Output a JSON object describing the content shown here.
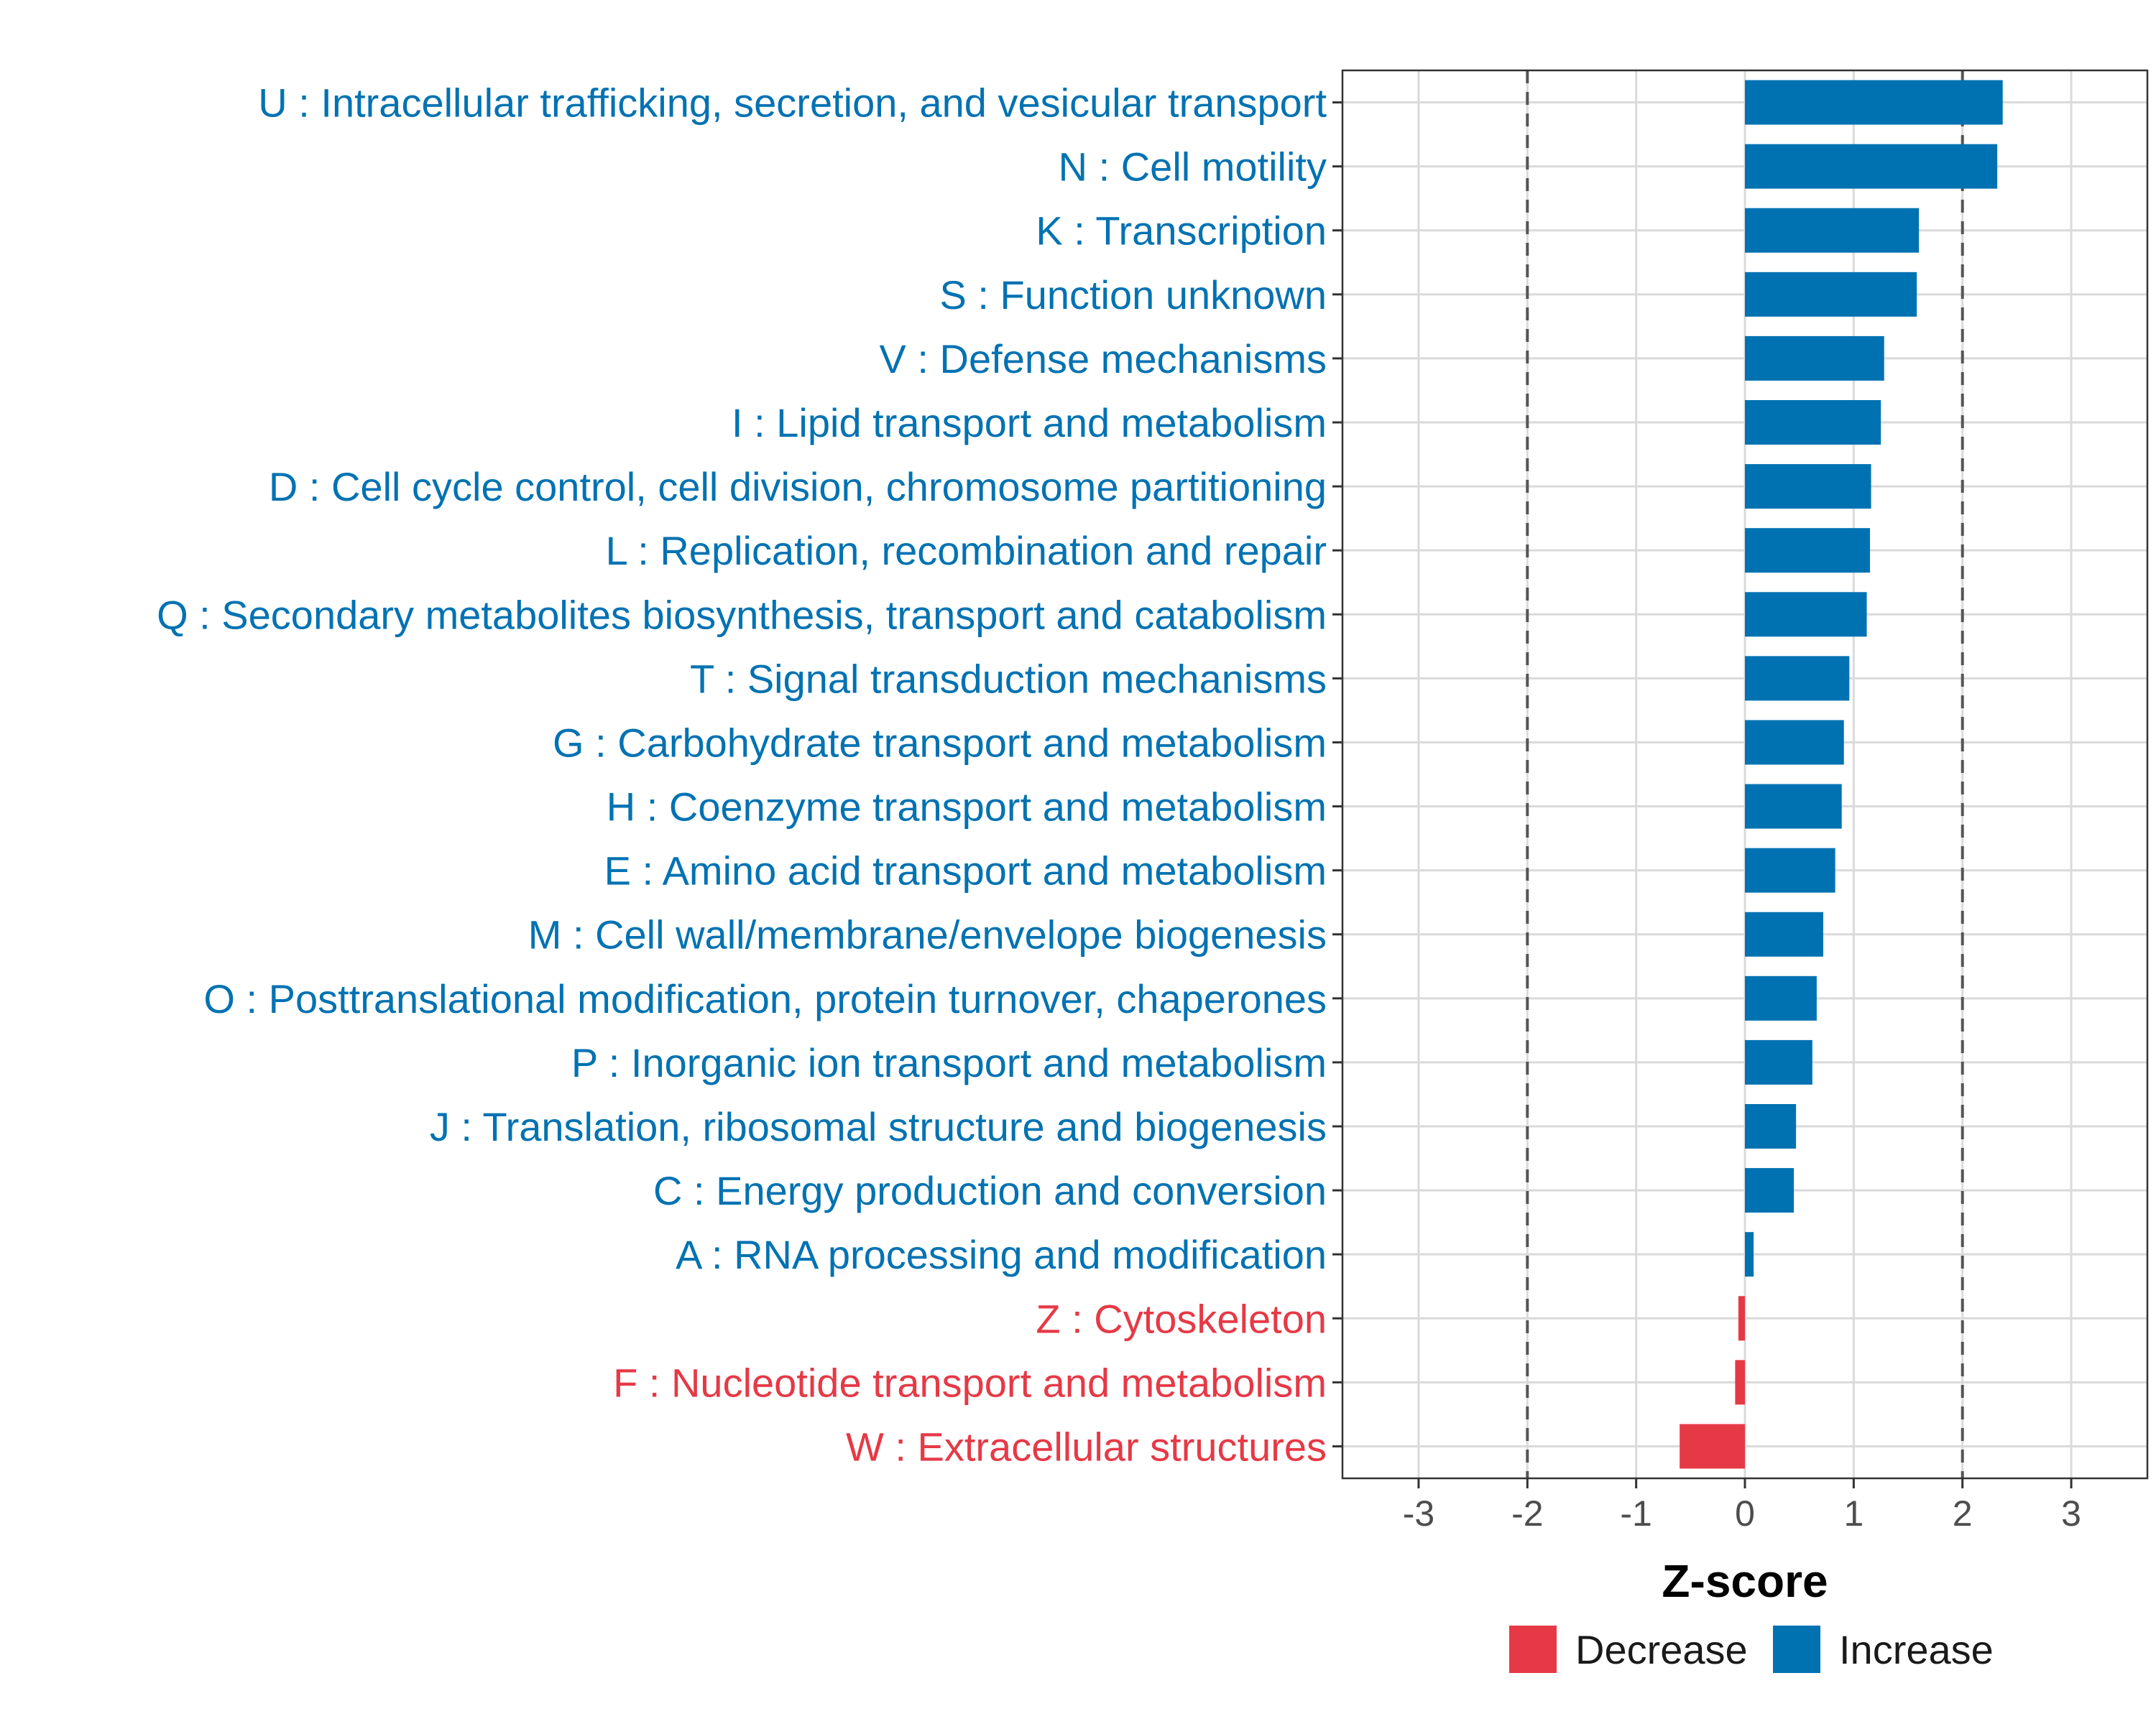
{
  "chart_data": {
    "type": "bar",
    "orientation": "horizontal",
    "xlabel": "Z-score",
    "xlim": [
      -3.7,
      3.7
    ],
    "xticks": [
      -3,
      -2,
      -1,
      0,
      1,
      2,
      3
    ],
    "xtick_labels": [
      "-3",
      "-2",
      "-1",
      "0",
      "1",
      "2",
      "3"
    ],
    "reference_lines": [
      -2,
      2
    ],
    "grid": true,
    "legend_position": "bottom",
    "colors": {
      "Increase": "#0072b2",
      "Decrease": "#e63946"
    },
    "legend": [
      {
        "name": "Decrease",
        "color": "#e63946"
      },
      {
        "name": "Increase",
        "color": "#0072b2"
      }
    ],
    "categories": [
      "U : Intracellular trafficking, secretion, and vesicular transport",
      "N : Cell motility",
      "K : Transcription",
      "S : Function unknown",
      "V : Defense mechanisms",
      "I : Lipid transport and metabolism",
      "D : Cell cycle control, cell division, chromosome partitioning",
      "L : Replication, recombination and repair",
      "Q : Secondary metabolites biosynthesis, transport and catabolism",
      "T : Signal transduction mechanisms",
      "G : Carbohydrate transport and metabolism",
      "H : Coenzyme transport and metabolism",
      "E : Amino acid transport and metabolism",
      "M : Cell wall/membrane/envelope biogenesis",
      "O : Posttranslational modification, protein turnover, chaperones",
      "P : Inorganic ion transport and metabolism",
      "J : Translation, ribosomal structure and biogenesis",
      "C : Energy production and conversion",
      "A : RNA processing and modification",
      "Z : Cytoskeleton",
      "F : Nucleotide transport and metabolism",
      "W : Extracellular structures"
    ],
    "values": [
      2.37,
      2.32,
      1.6,
      1.58,
      1.28,
      1.25,
      1.16,
      1.15,
      1.12,
      0.96,
      0.91,
      0.89,
      0.83,
      0.72,
      0.66,
      0.62,
      0.47,
      0.45,
      0.08,
      -0.06,
      -0.09,
      -0.6
    ],
    "direction": [
      "Increase",
      "Increase",
      "Increase",
      "Increase",
      "Increase",
      "Increase",
      "Increase",
      "Increase",
      "Increase",
      "Increase",
      "Increase",
      "Increase",
      "Increase",
      "Increase",
      "Increase",
      "Increase",
      "Increase",
      "Increase",
      "Increase",
      "Decrease",
      "Decrease",
      "Decrease"
    ]
  }
}
